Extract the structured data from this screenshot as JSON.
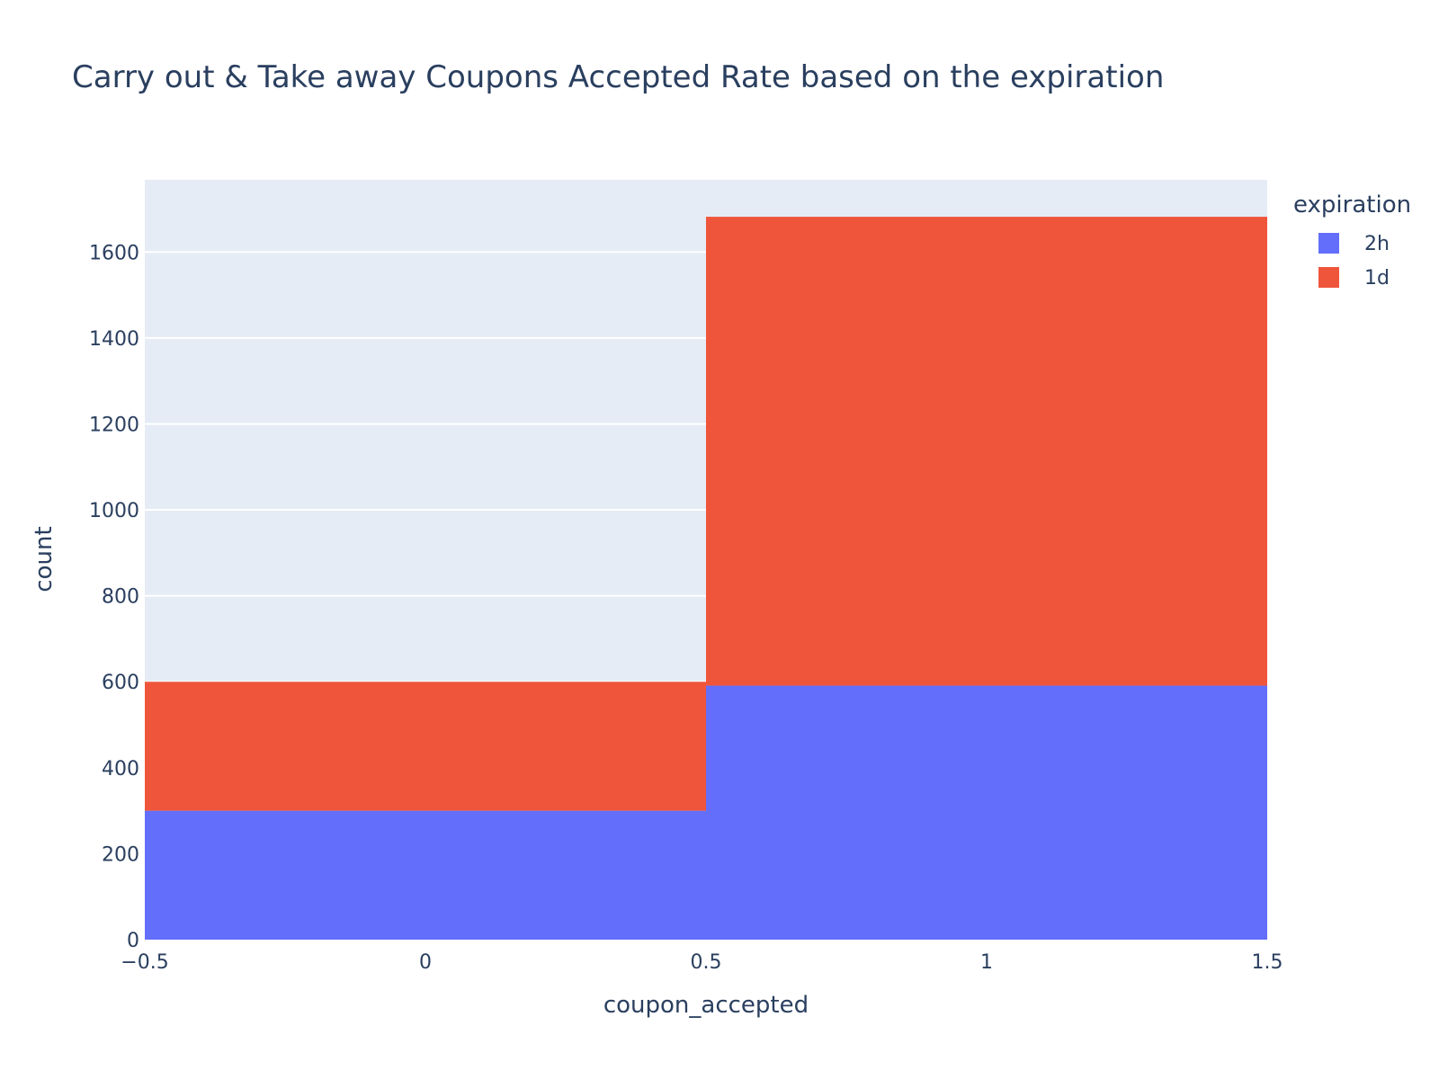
{
  "chart_data": {
    "type": "bar",
    "title": "Carry out & Take away Coupons Accepted Rate based on the expiration",
    "xlabel": "coupon_accepted",
    "ylabel": "count",
    "barmode": "stack",
    "bins": [
      [
        -0.5,
        0.5
      ],
      [
        0.5,
        1.5
      ]
    ],
    "categories": [
      0,
      1
    ],
    "series": [
      {
        "name": "2h",
        "color": "#636efa",
        "values": [
          300,
          591
        ]
      },
      {
        "name": "1d",
        "color": "#ef553b",
        "values": [
          300,
          1091
        ]
      }
    ],
    "xlim": [
      -0.5,
      1.5
    ],
    "ylim": [
      0,
      1768
    ],
    "x_ticks": [
      "−0.5",
      "0",
      "0.5",
      "1",
      "1.5"
    ],
    "x_tick_values": [
      -0.5,
      0,
      0.5,
      1,
      1.5
    ],
    "y_ticks": [
      0,
      200,
      400,
      600,
      800,
      1000,
      1200,
      1400,
      1600
    ],
    "grid": true,
    "legend_title": "expiration",
    "legend_position": "top-right",
    "plot_background": "#e5ecf6"
  }
}
